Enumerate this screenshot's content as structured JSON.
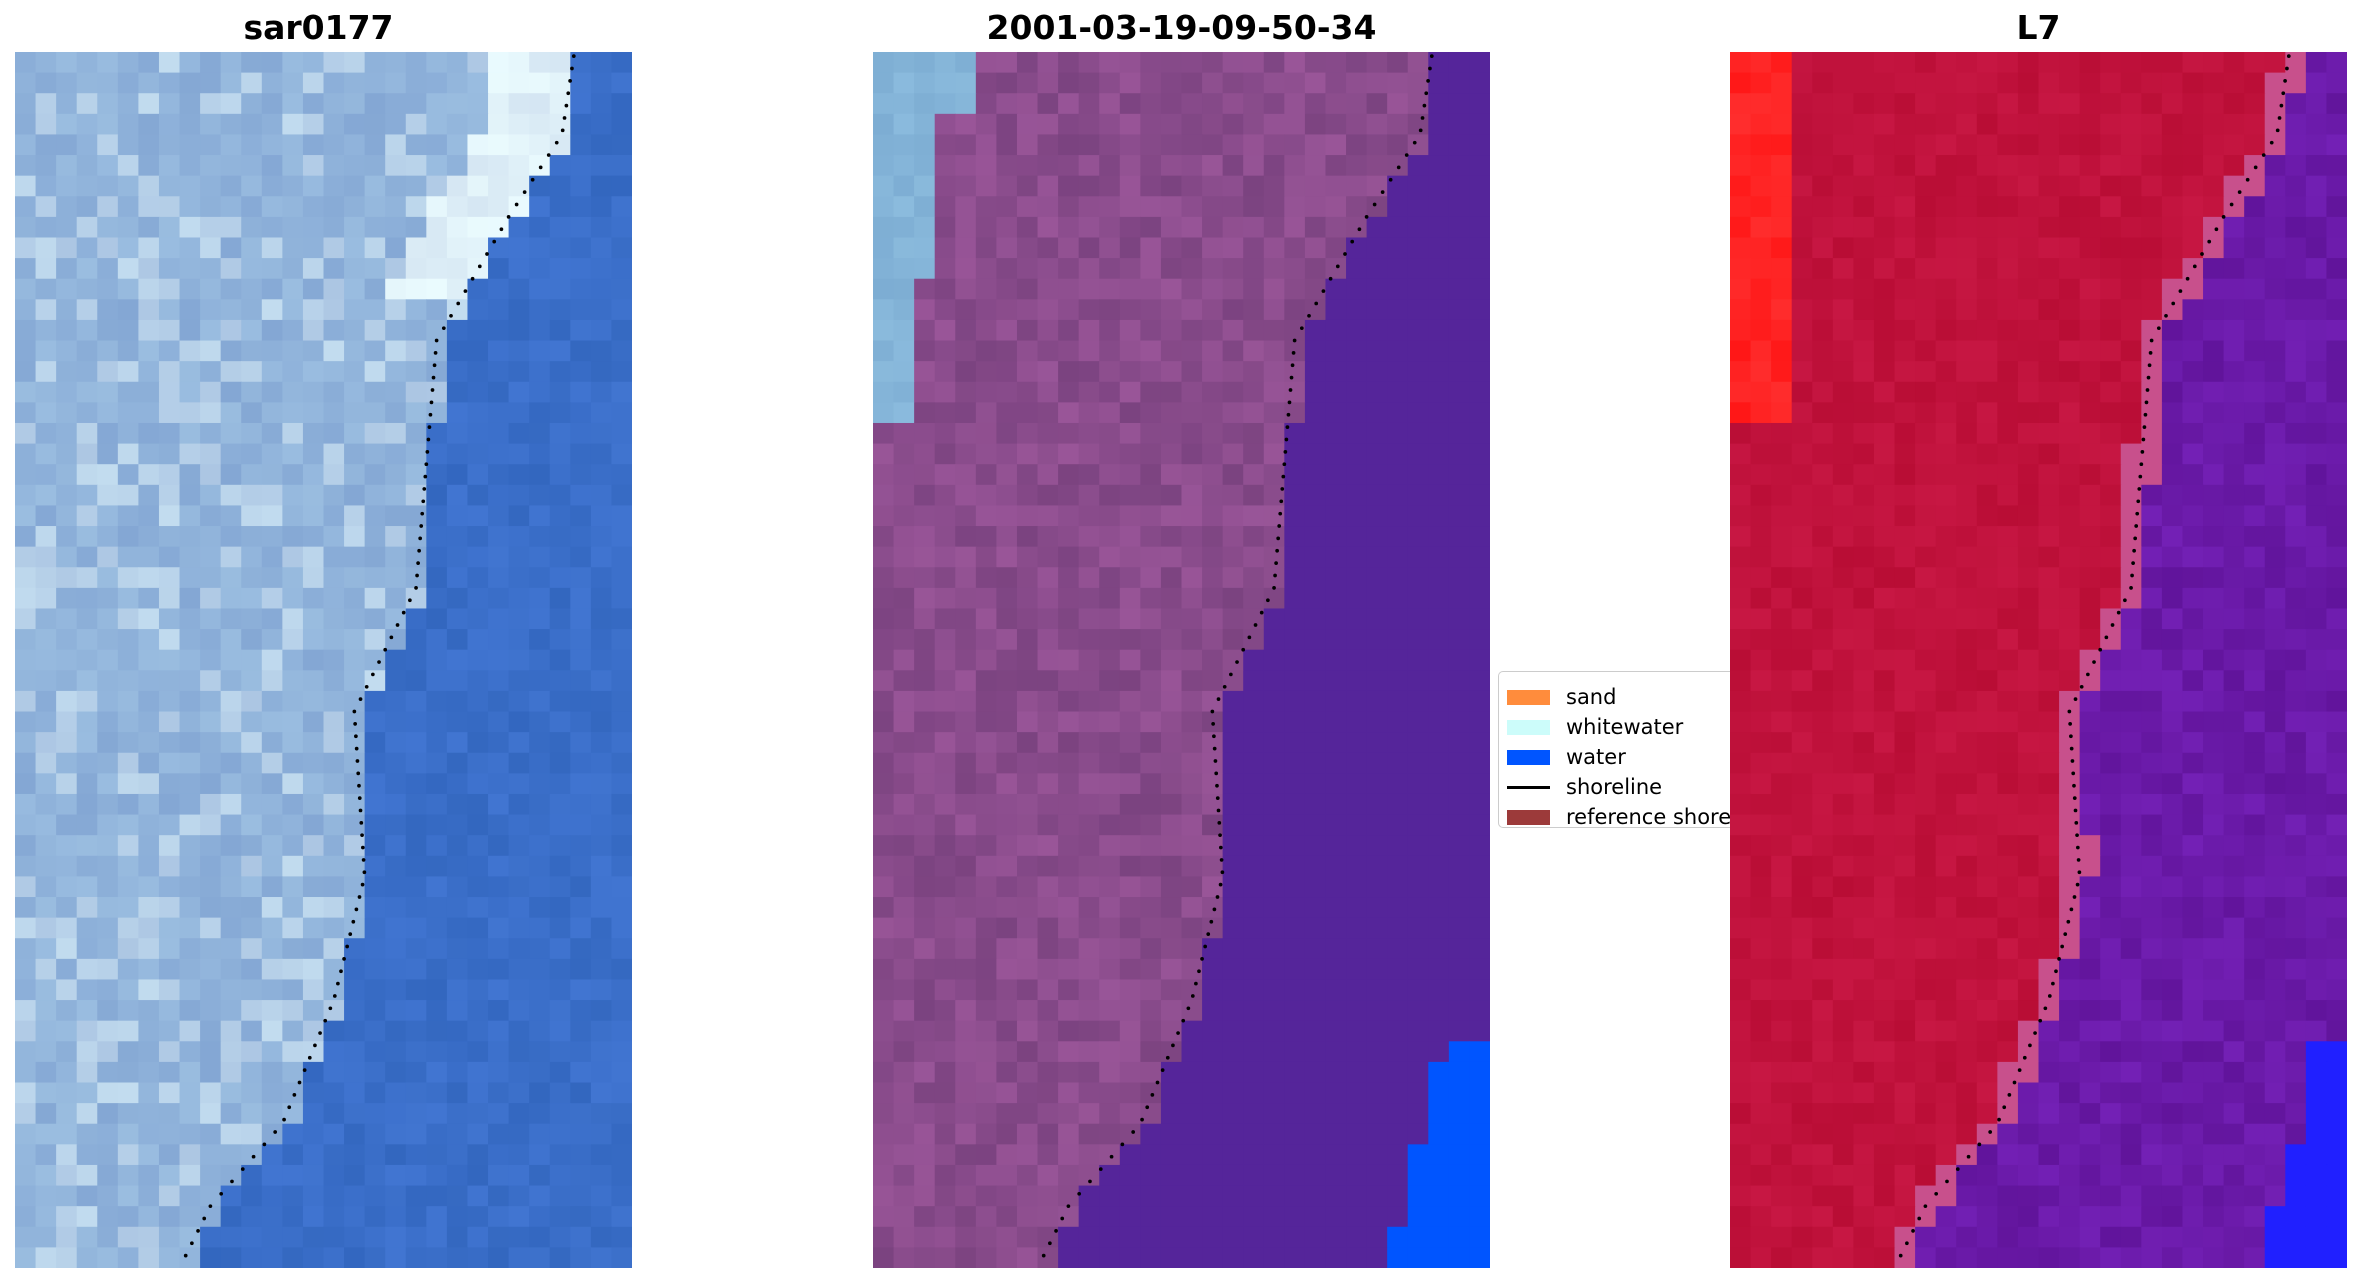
{
  "panels": [
    {
      "title": "sar0177",
      "style": "rgb"
    },
    {
      "title": "2001-03-19-09-50-34",
      "style": "classified"
    },
    {
      "title": "L7",
      "style": "index"
    }
  ],
  "legend": {
    "items": [
      {
        "label": "sand",
        "kind": "swatch",
        "color": "#ff8c3c"
      },
      {
        "label": "whitewater",
        "kind": "swatch",
        "color": "#ccfcfa"
      },
      {
        "label": "water",
        "kind": "swatch",
        "color": "#0055ff"
      },
      {
        "label": "shoreline",
        "kind": "line",
        "color": "#000000"
      },
      {
        "label": "reference shoreline",
        "kind": "swatch",
        "color": "#9c3a3a"
      }
    ]
  },
  "colors": {
    "water_rgb": "#3a6ec8",
    "land_rgb": "#8fb2da",
    "whitewater_rgb": "#dff0f8",
    "land_classified": "#8a4c8c",
    "water_classified": "#55259a",
    "ocean_classified": "#0055ff",
    "sky_classified": "#84b4d8",
    "land_index": "#c0123c",
    "water_index": "#6a1aa8",
    "high_index": "#ff2222",
    "ocean_index": "#2020ff",
    "shoreline_dots": "#000000"
  }
}
